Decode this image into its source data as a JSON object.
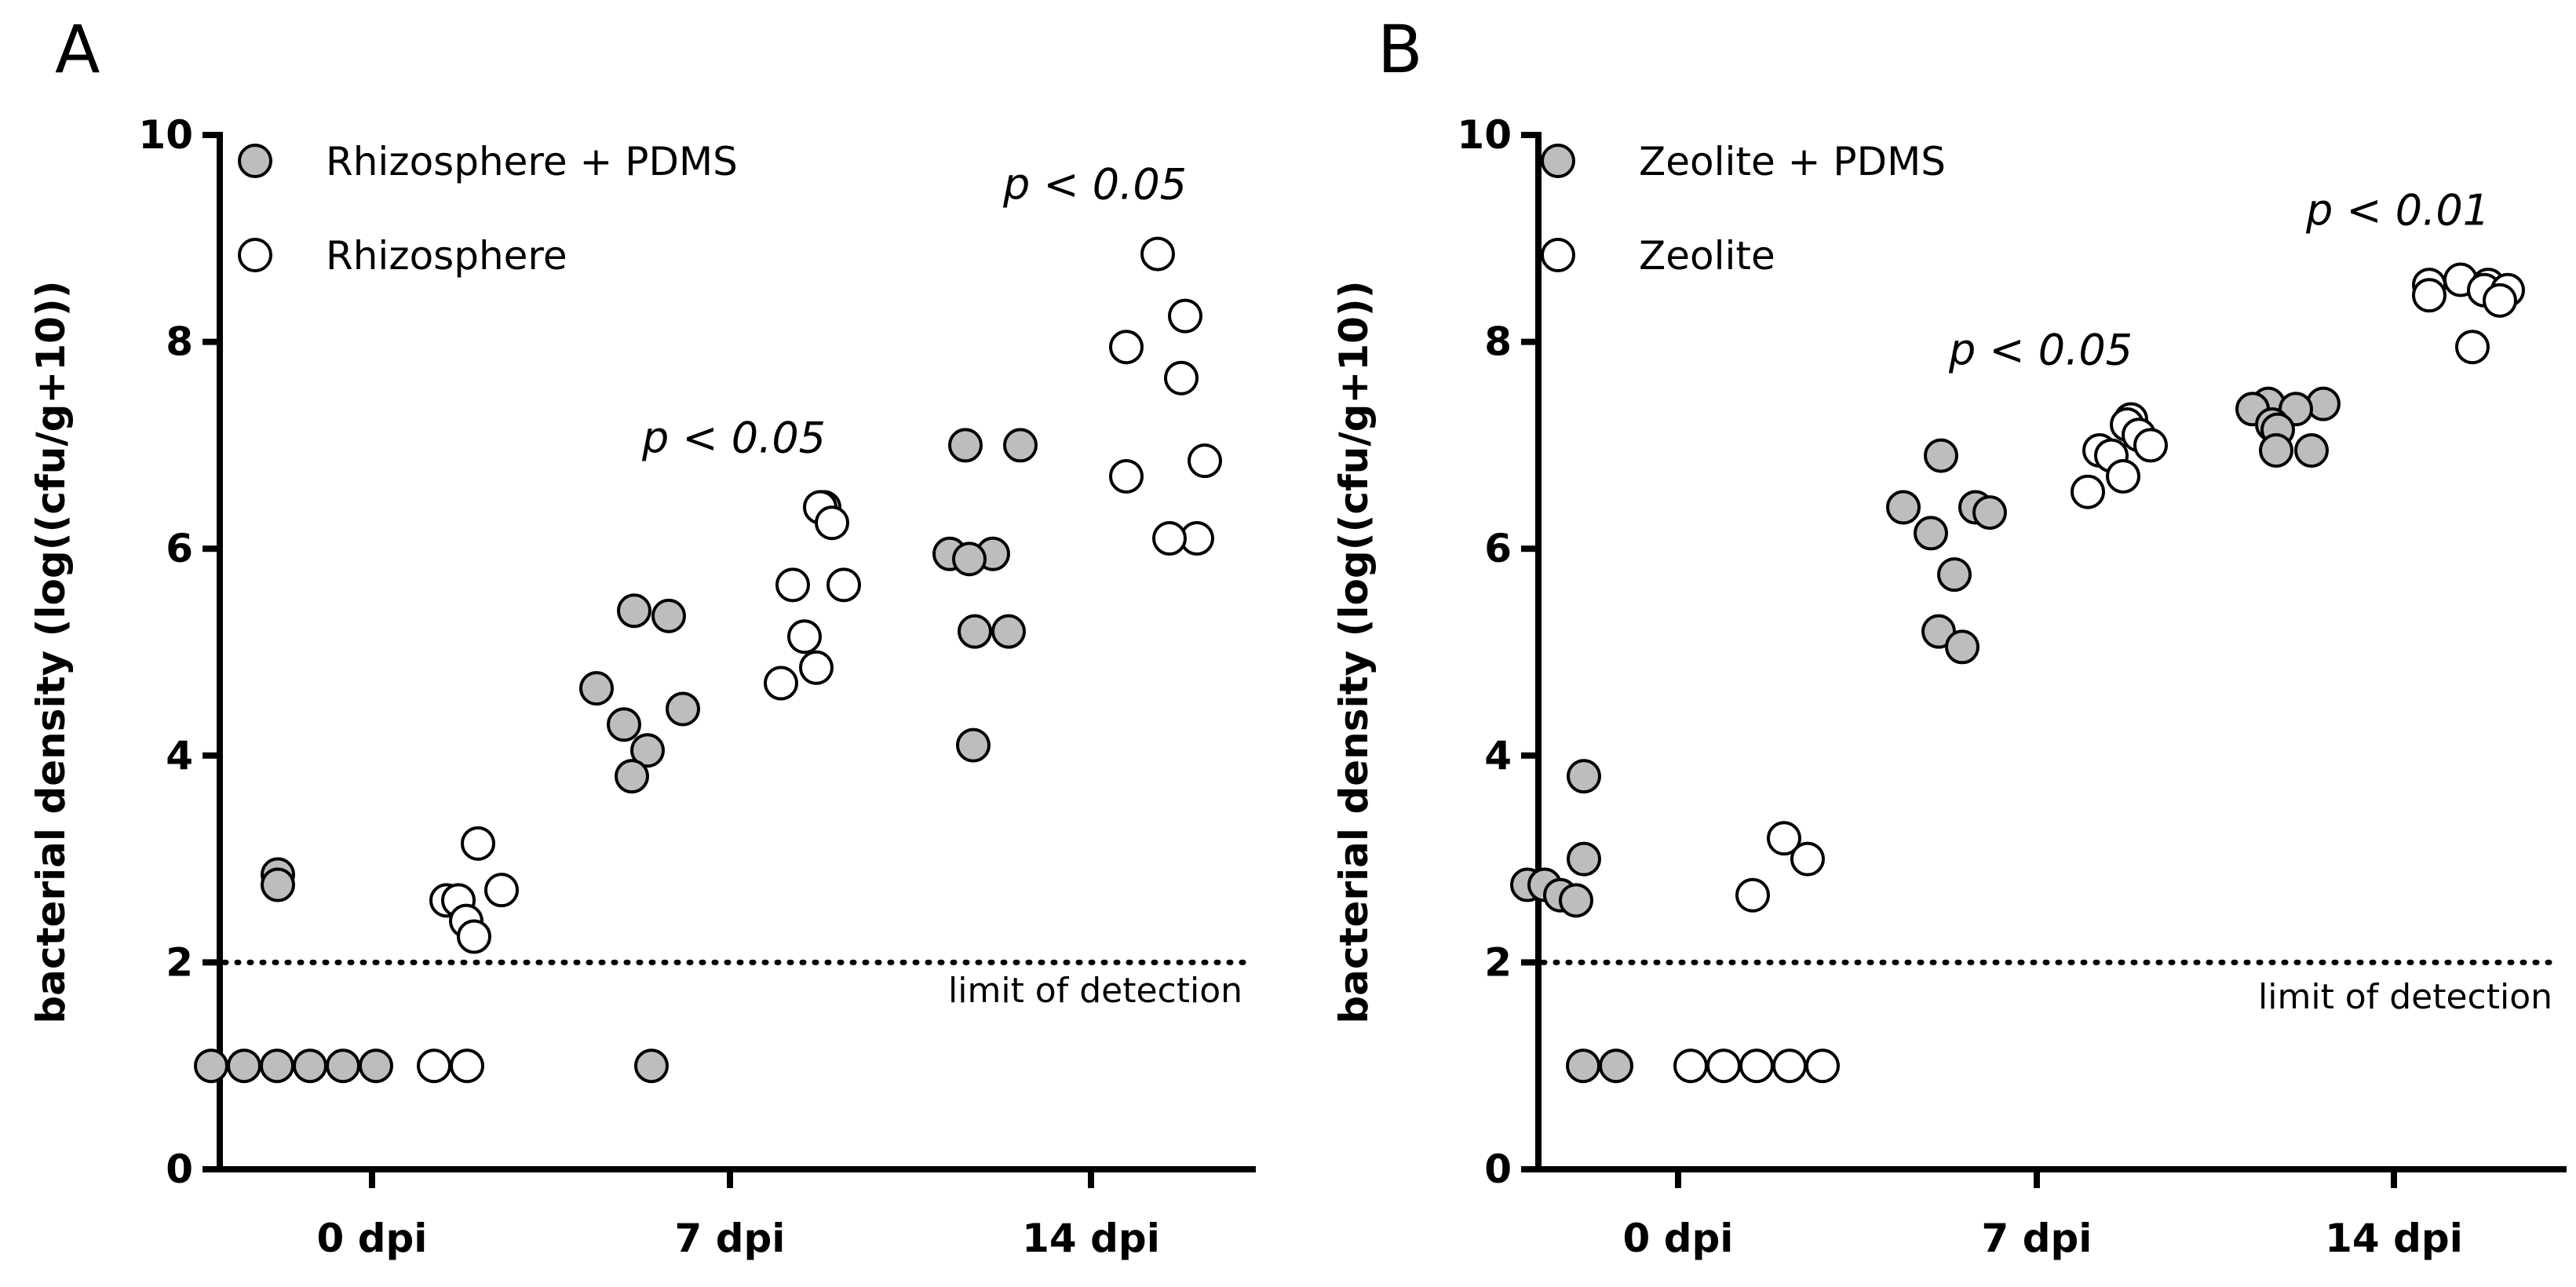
{
  "chart_data": [
    {
      "panel": "A",
      "type": "scatter",
      "ylabel": "bacterial density (log((cfu/g+10))",
      "ylim": [
        0,
        10
      ],
      "yticks": [
        0,
        2,
        4,
        6,
        8,
        10
      ],
      "categories": [
        "0 dpi",
        "7 dpi",
        "14 dpi"
      ],
      "limit_of_detection": {
        "value": 2,
        "label": "limit of detection"
      },
      "legend": [
        {
          "name": "Rhizosphere + PDMS",
          "style": "filled"
        },
        {
          "name": "Rhizosphere",
          "style": "open"
        }
      ],
      "annotations": [
        {
          "category": "7 dpi",
          "text": "p < 0.05"
        },
        {
          "category": "14 dpi",
          "text": "p < 0.05"
        }
      ],
      "series": [
        {
          "name": "Rhizosphere + PDMS",
          "style": "filled",
          "values": [
            [
              2.85,
              2.75,
              1.0,
              1.0,
              1.0,
              1.0,
              1.0,
              1.0
            ],
            [
              5.4,
              5.35,
              4.65,
              4.45,
              4.3,
              4.05,
              3.8,
              1.0
            ],
            [
              7.0,
              7.0,
              5.95,
              5.95,
              5.9,
              5.2,
              5.2,
              4.1
            ]
          ]
        },
        {
          "name": "Rhizosphere",
          "style": "open",
          "values": [
            [
              3.15,
              2.7,
              2.6,
              2.6,
              2.4,
              2.25,
              1.0,
              1.0
            ],
            [
              6.4,
              6.4,
              6.25,
              5.65,
              5.65,
              5.15,
              4.85,
              4.7
            ],
            [
              8.85,
              8.25,
              7.95,
              7.65,
              6.85,
              6.7,
              6.1,
              6.1
            ]
          ]
        }
      ]
    },
    {
      "panel": "B",
      "type": "scatter",
      "ylabel": "bacterial density (log((cfu/g+10))",
      "ylim": [
        0,
        10
      ],
      "yticks": [
        0,
        2,
        4,
        6,
        8,
        10
      ],
      "categories": [
        "0 dpi",
        "7 dpi",
        "14 dpi"
      ],
      "limit_of_detection": {
        "value": 2,
        "label": "limit of detection"
      },
      "legend": [
        {
          "name": "Zeolite + PDMS",
          "style": "filled"
        },
        {
          "name": "Zeolite",
          "style": "open"
        }
      ],
      "annotations": [
        {
          "category": "7 dpi",
          "text": "p < 0.05"
        },
        {
          "category": "14 dpi",
          "text": "p < 0.01"
        }
      ],
      "series": [
        {
          "name": "Zeolite + PDMS",
          "style": "filled",
          "values": [
            [
              3.8,
              3.0,
              2.75,
              2.75,
              2.65,
              2.6,
              1.0,
              1.0
            ],
            [
              6.9,
              6.4,
              6.4,
              6.35,
              6.15,
              5.75,
              5.2,
              5.05
            ],
            [
              7.4,
              7.4,
              7.35,
              7.35,
              7.2,
              7.15,
              6.95,
              6.95
            ]
          ]
        },
        {
          "name": "Zeolite",
          "style": "open",
          "values": [
            [
              3.2,
              3.0,
              2.65,
              1.0,
              1.0,
              1.0,
              1.0,
              1.0
            ],
            [
              7.25,
              7.2,
              7.1,
              7.0,
              6.95,
              6.9,
              6.7,
              6.55
            ],
            [
              8.6,
              8.55,
              8.55,
              8.5,
              8.5,
              8.45,
              8.4,
              7.95
            ]
          ]
        }
      ]
    }
  ]
}
